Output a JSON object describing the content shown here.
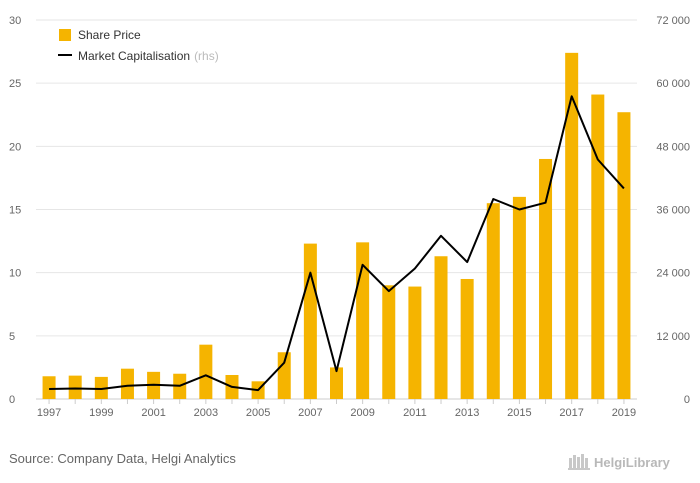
{
  "chart_data": {
    "type": "bar+line",
    "categories": [
      "1997",
      "1998",
      "1999",
      "2000",
      "2001",
      "2002",
      "2003",
      "2004",
      "2005",
      "2006",
      "2007",
      "2008",
      "2009",
      "2010",
      "2011",
      "2012",
      "2013",
      "2014",
      "2015",
      "2016",
      "2017",
      "2018",
      "2019"
    ],
    "x_tick_labels": [
      "1997",
      "1999",
      "2001",
      "2003",
      "2005",
      "2007",
      "2009",
      "2011",
      "2013",
      "2015",
      "2017",
      "2019"
    ],
    "series": [
      {
        "name": "Share Price",
        "type": "bar",
        "axis": "left",
        "color": "#f5b400",
        "values": [
          1.8,
          1.85,
          1.75,
          2.4,
          2.15,
          2.0,
          4.3,
          1.9,
          1.4,
          3.7,
          12.3,
          2.5,
          12.4,
          9.0,
          8.9,
          11.3,
          9.5,
          15.5,
          16.0,
          19.0,
          27.4,
          24.1,
          22.7
        ]
      },
      {
        "name": "Market Capitalisation",
        "name_note": "(rhs)",
        "type": "line",
        "axis": "right",
        "color": "#000000",
        "values": [
          1900,
          2000,
          1900,
          2500,
          2700,
          2500,
          4500,
          2300,
          1700,
          6900,
          24000,
          5300,
          25500,
          20500,
          24800,
          31000,
          26000,
          38000,
          36000,
          37300,
          57500,
          45500,
          40000
        ]
      }
    ],
    "y_left": {
      "min": 0,
      "max": 30,
      "ticks": [
        "0",
        "5",
        "10",
        "15",
        "20",
        "25",
        "30"
      ]
    },
    "y_right": {
      "min": 0,
      "max": 72000,
      "ticks": [
        "0",
        "12 000",
        "24 000",
        "36 000",
        "48 000",
        "60 000",
        "72 000"
      ]
    },
    "grid": true,
    "legend_position": "top-left"
  },
  "source_text": "Source: Company Data, Helgi Analytics",
  "logo_text": "HelgiLibrary"
}
